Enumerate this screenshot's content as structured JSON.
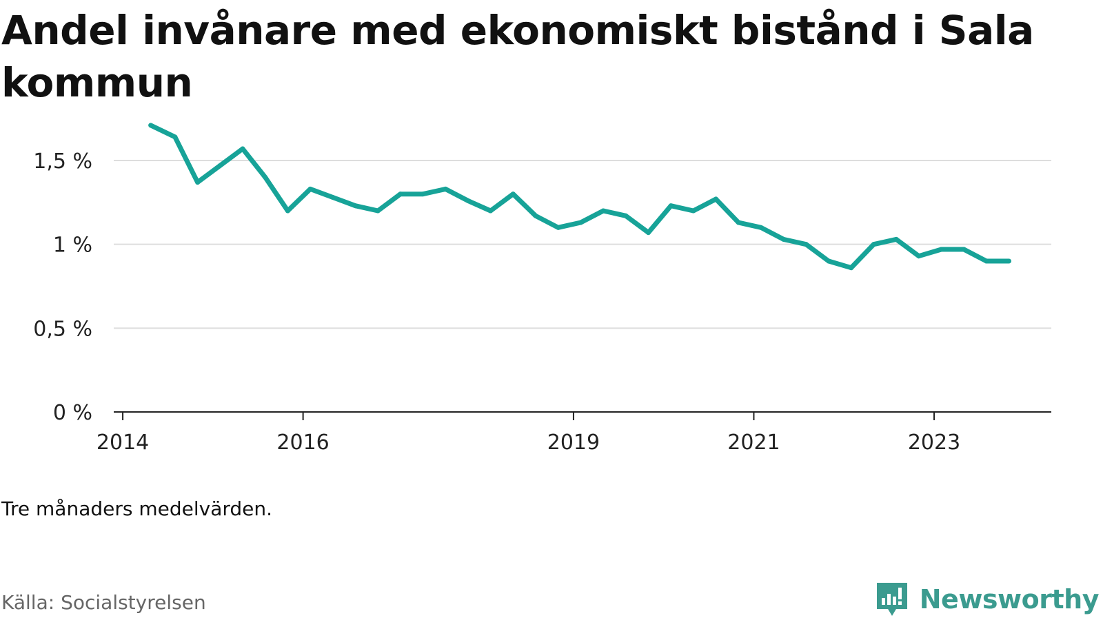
{
  "title": "Andel invånare med ekonomiskt bistånd i Sala kommun",
  "note": "Tre månaders medelvärden.",
  "source": "Källa: Socialstyrelsen",
  "brand": {
    "name": "Newsworthy",
    "icon": "newsworthy-logo-icon",
    "color": "#3b9b8f"
  },
  "chart_data": {
    "type": "line",
    "color": "#17a398",
    "ylim": [
      0,
      1.8
    ],
    "grid": true,
    "y_ticks": [
      {
        "value": 0,
        "label": "0 %"
      },
      {
        "value": 0.5,
        "label": "0,5 %"
      },
      {
        "value": 1,
        "label": "1 %"
      },
      {
        "value": 1.5,
        "label": "1,5 %"
      }
    ],
    "x_ticks": [
      {
        "value": 2014.0,
        "label": "2014"
      },
      {
        "value": 2016.0,
        "label": "2016"
      },
      {
        "value": 2019.0,
        "label": "2019"
      },
      {
        "value": 2021.0,
        "label": "2021"
      },
      {
        "value": 2023.0,
        "label": "2023"
      }
    ],
    "xlim": [
      2013.9,
      2024.3
    ],
    "series": [
      {
        "values": [
          [
            2014.31,
            1.71
          ],
          [
            2014.58,
            1.64
          ],
          [
            2014.83,
            1.37
          ],
          [
            2015.08,
            1.47
          ],
          [
            2015.33,
            1.57
          ],
          [
            2015.58,
            1.4
          ],
          [
            2015.83,
            1.2
          ],
          [
            2016.08,
            1.33
          ],
          [
            2016.33,
            1.28
          ],
          [
            2016.58,
            1.23
          ],
          [
            2016.83,
            1.2
          ],
          [
            2017.08,
            1.3
          ],
          [
            2017.33,
            1.3
          ],
          [
            2017.58,
            1.33
          ],
          [
            2017.83,
            1.26
          ],
          [
            2018.08,
            1.2
          ],
          [
            2018.33,
            1.3
          ],
          [
            2018.58,
            1.17
          ],
          [
            2018.83,
            1.1
          ],
          [
            2019.08,
            1.13
          ],
          [
            2019.33,
            1.2
          ],
          [
            2019.58,
            1.17
          ],
          [
            2019.83,
            1.07
          ],
          [
            2020.08,
            1.23
          ],
          [
            2020.33,
            1.2
          ],
          [
            2020.58,
            1.27
          ],
          [
            2020.83,
            1.13
          ],
          [
            2021.08,
            1.1
          ],
          [
            2021.33,
            1.03
          ],
          [
            2021.58,
            1.0
          ],
          [
            2021.83,
            0.9
          ],
          [
            2022.08,
            0.86
          ],
          [
            2022.33,
            1.0
          ],
          [
            2022.58,
            1.03
          ],
          [
            2022.83,
            0.93
          ],
          [
            2023.08,
            0.97
          ],
          [
            2023.33,
            0.97
          ],
          [
            2023.58,
            0.9
          ],
          [
            2023.83,
            0.9
          ]
        ]
      }
    ]
  }
}
